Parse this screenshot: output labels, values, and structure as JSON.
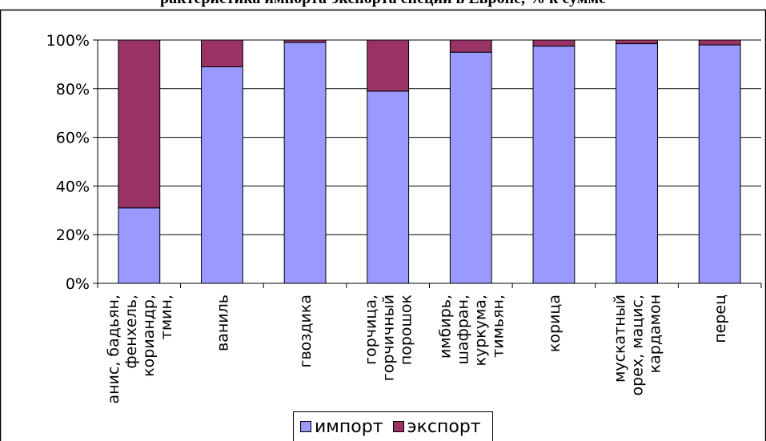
{
  "chart_data": {
    "type": "bar",
    "stacked": true,
    "title": "рактеристика импорта-экспорта специй в Европе, % к сумме",
    "categories": [
      [
        "анис, бадьян,",
        "фенхель,",
        "кориандр,",
        "тмин,"
      ],
      [
        "ваниль"
      ],
      [
        "гвоздика"
      ],
      [
        "горчица,",
        "горчичный",
        "порошок"
      ],
      [
        "имбирь,",
        "шафран,",
        "куркума,",
        "тимьян,"
      ],
      [
        "корица"
      ],
      [
        "мускатный",
        "орех, мацис,",
        "кардамон"
      ],
      [
        "перец"
      ]
    ],
    "series": [
      {
        "name": "импорт",
        "color": "#9999FF",
        "values": [
          31,
          89,
          99,
          79,
          95,
          97.5,
          98.5,
          98
        ]
      },
      {
        "name": "экспорт",
        "color": "#993366",
        "values": [
          69,
          11,
          1,
          21,
          5,
          2.5,
          1.5,
          2
        ]
      }
    ],
    "ylim": [
      0,
      100
    ],
    "yticks": [
      "0%",
      "20%",
      "40%",
      "60%",
      "80%",
      "100%"
    ],
    "grid": true,
    "legend": "bottom"
  }
}
